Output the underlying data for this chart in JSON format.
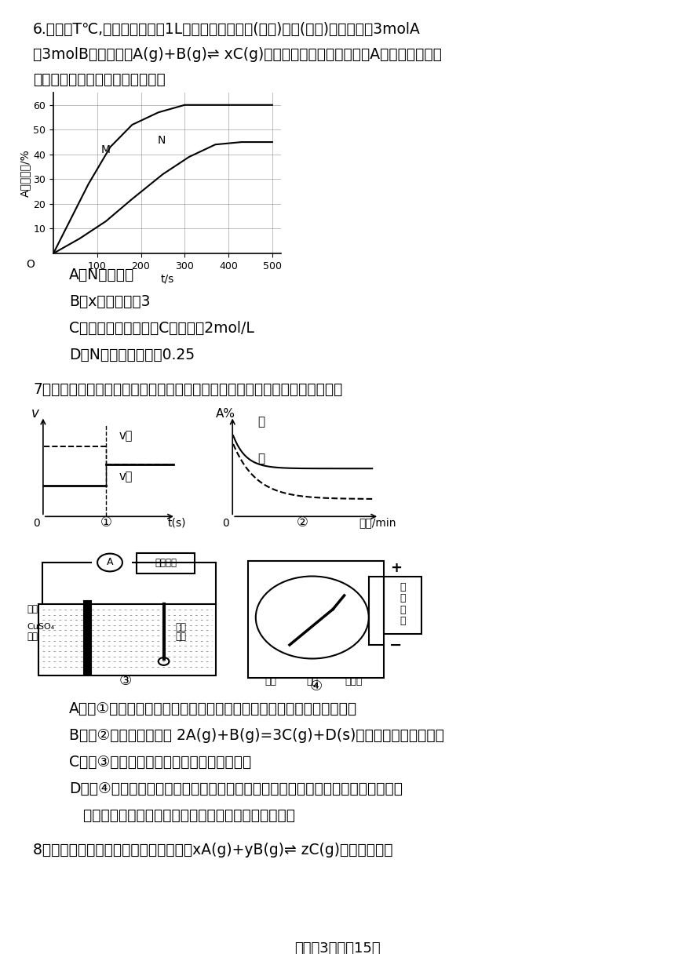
{
  "bg_color": "#ffffff",
  "q6_line1": "6.温度为T℃,向初始体积均为1L的两个密闭容器甲(恒容)、乙(恒压)中分别加入3molA",
  "q6_line2": "和3molB发生反应：A(g)+B(g)⇌ xC(g)，实验测得甲、乙两容器中A的转化率随时间",
  "q6_line3": "变化如图所示。下列说法正确的是",
  "q6_choices": [
    "A．N为容器乙",
    "B．x等于或大于3",
    "C．平衡时，容器乙中C的浓度为2mol/L",
    "D．N的平衡常数等于0.25"
  ],
  "q7_line1": "7．化学中常用图像直观地描述化学反应的进程或结果，下列图像描述正确的是",
  "q7_choices": [
    "A．图①可以表示对某化学平衡体系使用催化剂后反应速率随时间的变化",
    "B．图②表示压强对反应 2A(g)+B(g)=3C(g)+D(s)的影响，且甲的压强大",
    "C．图③电镀时，铜片与直流电源的负极相连",
    "D．图④滤纸先用氯化钠、无色酚酞的混合液浸湿，然后平铺在一块铂片上，接通电",
    "   源后，用外加保护膜的细铁棒做笔在滤纸上写字显红色"
  ],
  "q8_line1": "8．一定温度下的密闭容器中发生反应：xA(g)+yB(g)⇌ zC(g)，平衡时测得",
  "footer": "试卷第3页，共15页"
}
